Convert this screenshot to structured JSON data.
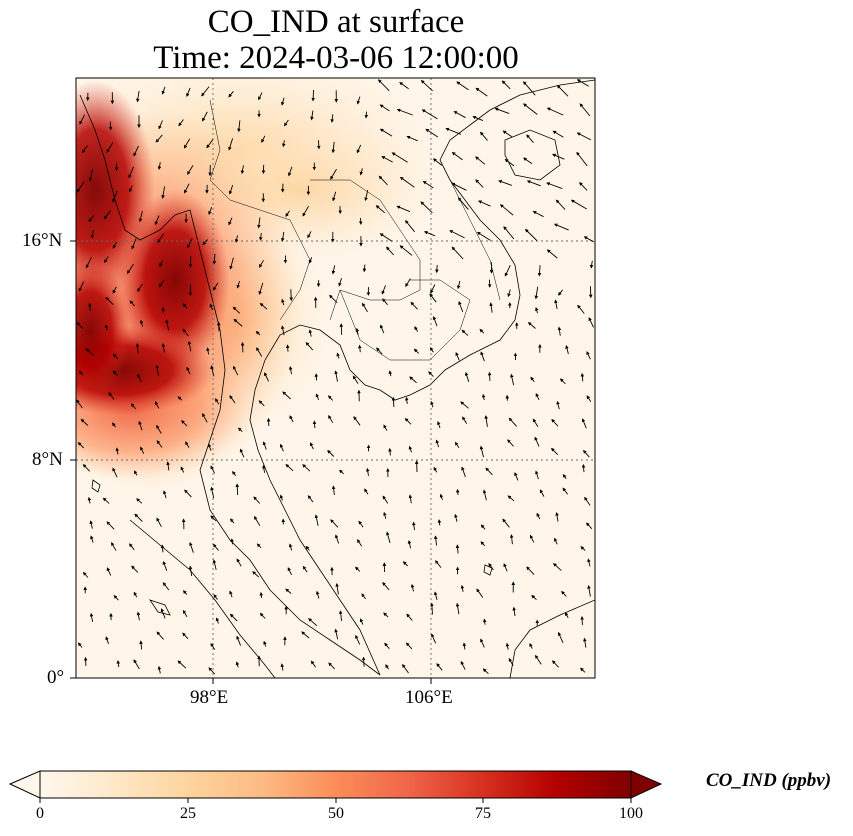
{
  "title": {
    "line1": "CO_IND at surface",
    "line2": "Time: 2024-03-06 12:00:00"
  },
  "axes": {
    "lon_ticks": [
      "98°E",
      "106°E"
    ],
    "lat_ticks": [
      "16°N",
      "8°N",
      "0°"
    ]
  },
  "colorbar": {
    "label": "CO_IND (ppbv)",
    "ticks": [
      "0",
      "25",
      "50",
      "75",
      "100"
    ],
    "range": [
      0,
      100
    ],
    "colormap": "OrRd",
    "extend": "both"
  },
  "map": {
    "extent_lon": [
      93,
      112
    ],
    "extent_lat": [
      0,
      22
    ],
    "gridlines": "dotted",
    "vectors": "wind arrows",
    "colors": {
      "low": "#fff7ec",
      "mid": "#fdbb84",
      "high": "#7f0000",
      "coast": "#000000",
      "grid": "#666666"
    }
  }
}
